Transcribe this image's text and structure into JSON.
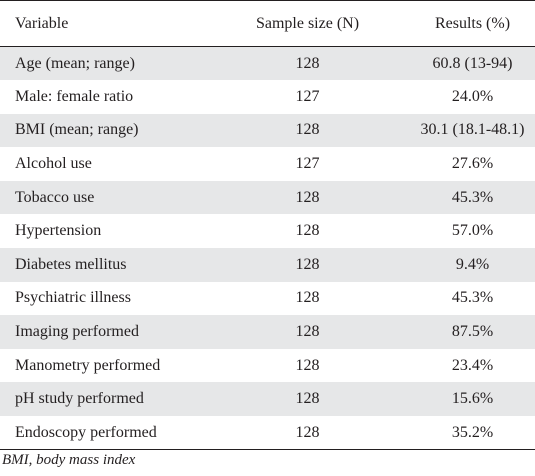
{
  "table": {
    "headers": [
      "Variable",
      "Sample size (N)",
      "Results (%)"
    ],
    "rows": [
      [
        "Age (mean; range)",
        "128",
        "60.8 (13-94)"
      ],
      [
        "Male: female ratio",
        "127",
        "24.0%"
      ],
      [
        "BMI (mean; range)",
        "128",
        "30.1 (18.1-48.1)"
      ],
      [
        "Alcohol use",
        "127",
        "27.6%"
      ],
      [
        "Tobacco use",
        "128",
        "45.3%"
      ],
      [
        "Hypertension",
        "128",
        "57.0%"
      ],
      [
        "Diabetes mellitus",
        "128",
        "9.4%"
      ],
      [
        "Psychiatric illness",
        "128",
        "45.3%"
      ],
      [
        "Imaging performed",
        "128",
        "87.5%"
      ],
      [
        "Manometry performed",
        "128",
        "23.4%"
      ],
      [
        "pH study performed",
        "128",
        "15.6%"
      ],
      [
        "Endoscopy performed",
        "128",
        "35.2%"
      ]
    ]
  },
  "footnote": "BMI, body mass index",
  "colors": {
    "stripe": "#e6e7e8",
    "text": "#231f20",
    "rule": "#231f20"
  }
}
